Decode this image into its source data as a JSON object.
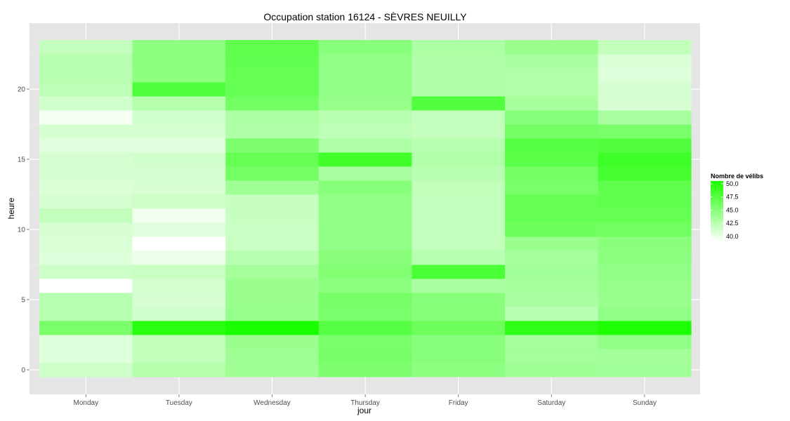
{
  "chart_data": {
    "type": "heatmap",
    "title": "Occupation station 16124 - SÈVRES NEUILLY",
    "xlabel": "jour",
    "ylabel": "heure",
    "x_categories": [
      "Monday",
      "Tuesday",
      "Wednesday",
      "Thursday",
      "Friday",
      "Saturday",
      "Sunday"
    ],
    "y_hours": [
      0,
      1,
      2,
      3,
      4,
      5,
      6,
      7,
      8,
      9,
      10,
      11,
      12,
      13,
      14,
      15,
      16,
      17,
      18,
      19,
      20,
      21,
      22,
      23
    ],
    "ylim": [
      -0.5,
      23.5
    ],
    "y_ticks": [
      0,
      5,
      10,
      15,
      20
    ],
    "y_tick_labels": [
      "0",
      "5",
      "10",
      "15",
      "20"
    ],
    "grid": true,
    "legend": {
      "title": "Nombre de vélibs",
      "placement": "right",
      "min": 38.5,
      "max": 50.0,
      "breaks": [
        50.0,
        47.5,
        45.0,
        42.5,
        40.0
      ],
      "break_labels": [
        "50.0",
        "47.5",
        "45.0",
        "42.5",
        "40.0"
      ],
      "low_color": "#ffffff",
      "high_color": "#1aff00"
    },
    "panel_background": "#e5e5e5",
    "values": [
      [
        41.0,
        42.2,
        43.3,
        45.0,
        44.2,
        43.3,
        43.2
      ],
      [
        40.2,
        41.6,
        43.3,
        45.3,
        44.5,
        43.0,
        43.1
      ],
      [
        40.2,
        41.6,
        43.5,
        45.2,
        44.5,
        43.0,
        44.0
      ],
      [
        45.2,
        49.3,
        50.0,
        47.0,
        45.8,
        49.0,
        49.8
      ],
      [
        42.1,
        40.8,
        43.7,
        45.1,
        44.6,
        42.0,
        44.0
      ],
      [
        42.0,
        40.5,
        43.5,
        45.4,
        44.5,
        42.8,
        43.6
      ],
      [
        38.5,
        40.7,
        43.5,
        44.2,
        42.8,
        43.0,
        43.8
      ],
      [
        41.0,
        41.2,
        43.0,
        44.8,
        47.6,
        43.2,
        44.0
      ],
      [
        40.2,
        39.5,
        42.0,
        44.4,
        42.0,
        43.0,
        44.2
      ],
      [
        40.3,
        38.5,
        41.2,
        44.0,
        41.5,
        43.5,
        44.4
      ],
      [
        40.5,
        40.0,
        41.2,
        44.0,
        41.5,
        45.8,
        45.7
      ],
      [
        41.5,
        39.2,
        41.3,
        44.0,
        41.5,
        46.2,
        46.2
      ],
      [
        40.6,
        41.0,
        41.3,
        44.0,
        41.5,
        46.2,
        46.5
      ],
      [
        40.3,
        40.5,
        43.3,
        44.5,
        41.6,
        45.2,
        46.5
      ],
      [
        40.6,
        40.6,
        45.5,
        42.8,
        42.0,
        45.5,
        47.8
      ],
      [
        40.6,
        40.8,
        46.2,
        48.0,
        42.4,
        46.8,
        48.2
      ],
      [
        40.0,
        40.0,
        45.0,
        42.5,
        42.0,
        47.0,
        47.2
      ],
      [
        40.6,
        40.6,
        42.5,
        41.8,
        41.4,
        45.5,
        45.2
      ],
      [
        39.0,
        40.8,
        42.6,
        42.0,
        41.5,
        44.5,
        42.8
      ],
      [
        40.8,
        42.2,
        45.6,
        43.8,
        47.2,
        43.0,
        40.5
      ],
      [
        41.8,
        47.3,
        46.2,
        44.0,
        42.5,
        42.4,
        40.6
      ],
      [
        42.0,
        44.2,
        46.2,
        44.0,
        42.5,
        42.4,
        40.2
      ],
      [
        42.0,
        44.3,
        46.4,
        44.0,
        42.5,
        42.8,
        40.3
      ],
      [
        41.4,
        44.2,
        46.5,
        44.5,
        42.6,
        43.5,
        41.6
      ]
    ]
  }
}
